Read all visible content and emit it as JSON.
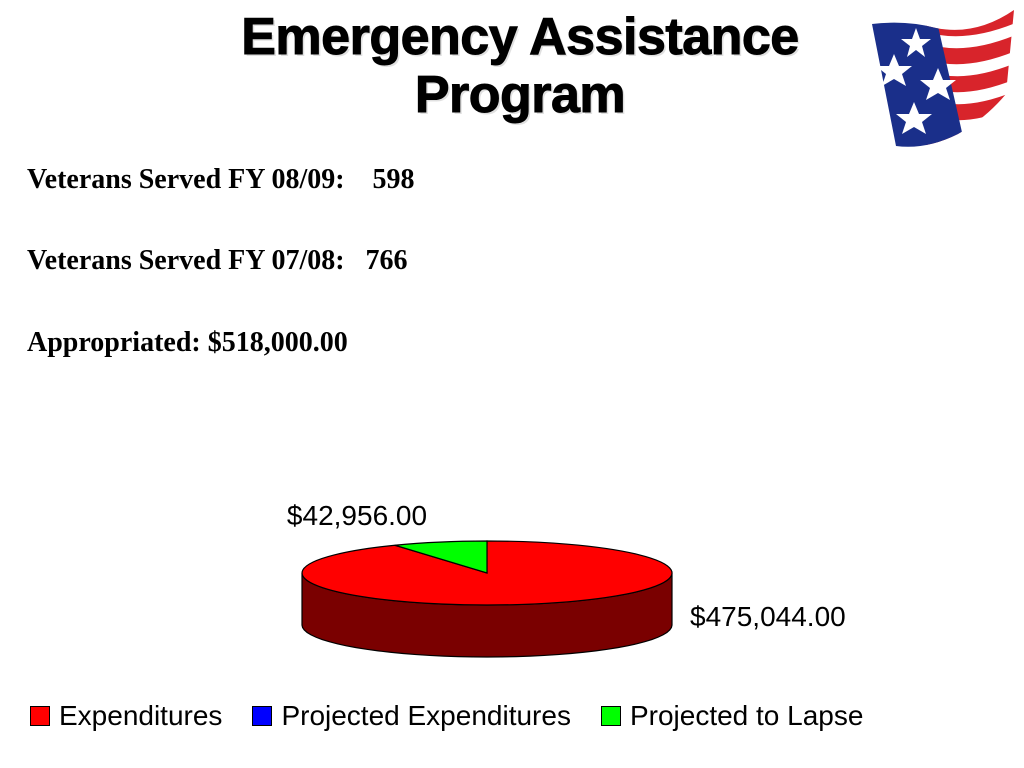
{
  "title": {
    "line1": "Emergency Assistance",
    "line2": "Program"
  },
  "logo": {
    "icon": "flag-stars-icon",
    "colors": {
      "blue": "#1a2f8a",
      "red": "#d8242b",
      "white": "#ffffff"
    }
  },
  "stats": [
    {
      "text": "Veterans Served FY 08/09:    598"
    },
    {
      "text": "Veterans Served FY 07/08:   766"
    },
    {
      "text": "Appropriated: $518,000.00"
    }
  ],
  "chart_data": {
    "type": "pie",
    "title": "",
    "style": "3d",
    "categories": [
      "Expenditures",
      "Projected Expenditures",
      "Projected to Lapse"
    ],
    "values": [
      475044.0,
      0,
      42956.0
    ],
    "data_labels": [
      "$475,044.00",
      "",
      "$42,956.00"
    ],
    "colors": [
      "#ff0000",
      "#0000ff",
      "#00ff00"
    ],
    "side_colors": [
      "#7a0000",
      "#00007a",
      "#007a00"
    ],
    "legend": {
      "placement": "bottom",
      "entries": [
        "Expenditures",
        "Projected Expenditures",
        "Projected to Lapse"
      ]
    }
  }
}
